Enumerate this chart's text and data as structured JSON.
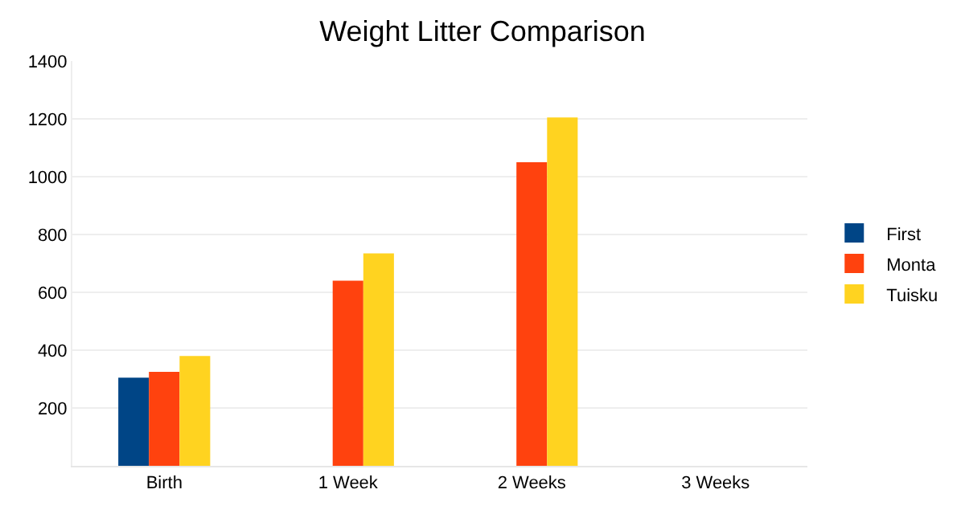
{
  "chart_data": {
    "type": "bar",
    "title": "Weight Litter Comparison",
    "categories": [
      "Birth",
      "1 Week",
      "2 Weeks",
      "3 Weeks"
    ],
    "series": [
      {
        "name": "First",
        "color": "#004586",
        "values": [
          305,
          null,
          null,
          null
        ]
      },
      {
        "name": "Monta",
        "color": "#ff420e",
        "values": [
          325,
          640,
          1050,
          null
        ]
      },
      {
        "name": "Tuisku",
        "color": "#ffd320",
        "values": [
          380,
          735,
          1205,
          null
        ]
      }
    ],
    "ylim": [
      0,
      1400
    ],
    "yticks": [
      {
        "value": 0,
        "label": null
      },
      200,
      400,
      600,
      800,
      1000,
      1200,
      1400
    ],
    "grid": "y",
    "legend": "right"
  }
}
